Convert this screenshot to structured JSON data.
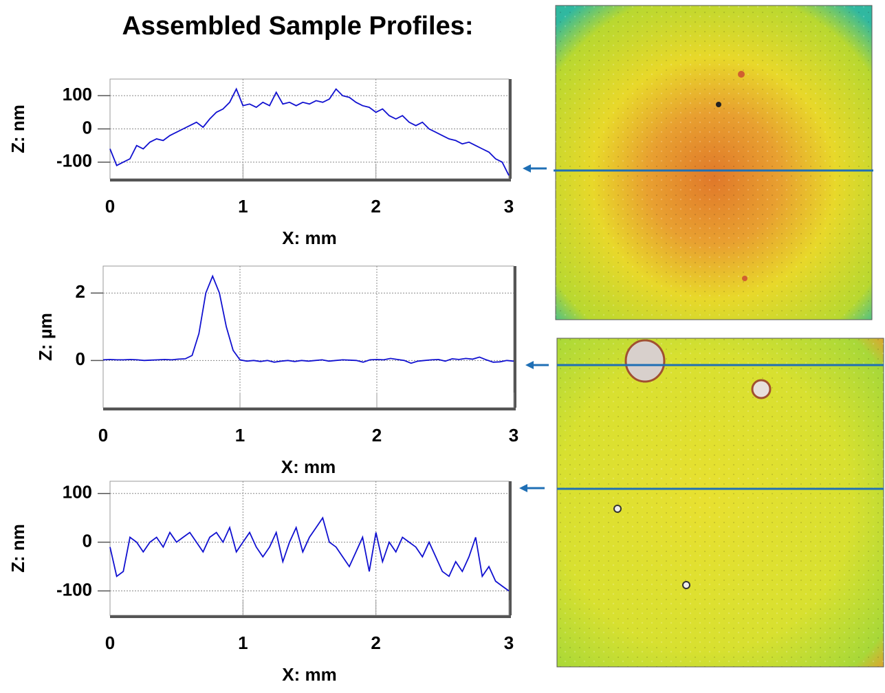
{
  "title": "Assembled Sample Profiles:",
  "chart_data": [
    {
      "type": "line",
      "xlabel": "X:  mm",
      "ylabel": "Z:  nm",
      "xlim": [
        0,
        3
      ],
      "xticks": [
        0,
        1,
        2,
        3
      ],
      "ylim": [
        -150,
        150
      ],
      "yticks": [
        -100,
        0,
        100
      ],
      "grid": true,
      "series": [
        {
          "color": "#1010d0",
          "x": [
            0,
            0.05,
            0.1,
            0.15,
            0.2,
            0.25,
            0.3,
            0.35,
            0.4,
            0.45,
            0.5,
            0.55,
            0.6,
            0.65,
            0.7,
            0.75,
            0.8,
            0.85,
            0.9,
            0.95,
            1,
            1.05,
            1.1,
            1.15,
            1.2,
            1.25,
            1.3,
            1.35,
            1.4,
            1.45,
            1.5,
            1.55,
            1.6,
            1.65,
            1.7,
            1.75,
            1.8,
            1.85,
            1.9,
            1.95,
            2,
            2.05,
            2.1,
            2.15,
            2.2,
            2.25,
            2.3,
            2.35,
            2.4,
            2.45,
            2.5,
            2.55,
            2.6,
            2.65,
            2.7,
            2.75,
            2.8,
            2.85,
            2.9,
            2.95,
            3
          ],
          "values": [
            -60,
            -110,
            -100,
            -90,
            -50,
            -60,
            -40,
            -30,
            -35,
            -20,
            -10,
            0,
            10,
            20,
            5,
            30,
            50,
            60,
            80,
            120,
            70,
            75,
            65,
            80,
            70,
            110,
            75,
            80,
            70,
            80,
            75,
            85,
            80,
            90,
            120,
            100,
            95,
            80,
            70,
            65,
            50,
            60,
            40,
            30,
            40,
            20,
            10,
            20,
            0,
            -10,
            -20,
            -30,
            -35,
            -45,
            -40,
            -50,
            -60,
            -70,
            -90,
            -100,
            -140
          ]
        }
      ]
    },
    {
      "type": "line",
      "xlabel": "X:  mm",
      "ylabel": "Z:  µm",
      "xlim": [
        0,
        3
      ],
      "xticks": [
        0,
        1,
        2,
        3
      ],
      "ylim": [
        -1.4,
        2.8
      ],
      "yticks": [
        0,
        2
      ],
      "grid": true,
      "series": [
        {
          "color": "#1010d0",
          "x": [
            0,
            0.05,
            0.1,
            0.15,
            0.2,
            0.25,
            0.3,
            0.35,
            0.4,
            0.45,
            0.5,
            0.55,
            0.6,
            0.65,
            0.7,
            0.75,
            0.8,
            0.85,
            0.9,
            0.95,
            1,
            1.05,
            1.1,
            1.15,
            1.2,
            1.25,
            1.3,
            1.35,
            1.4,
            1.45,
            1.5,
            1.55,
            1.6,
            1.65,
            1.7,
            1.75,
            1.8,
            1.85,
            1.9,
            1.95,
            2,
            2.05,
            2.1,
            2.15,
            2.2,
            2.25,
            2.3,
            2.35,
            2.4,
            2.45,
            2.5,
            2.55,
            2.6,
            2.65,
            2.7,
            2.75,
            2.8,
            2.85,
            2.9,
            2.95,
            3
          ],
          "values": [
            0.02,
            0.03,
            0.02,
            0.02,
            0.03,
            0.02,
            0,
            0.01,
            0.02,
            0.03,
            0.02,
            0.04,
            0.05,
            0.15,
            0.8,
            2.0,
            2.5,
            2.0,
            1.0,
            0.3,
            0.02,
            -0.02,
            0,
            -0.03,
            0,
            -0.05,
            -0.02,
            0,
            -0.03,
            0,
            -0.02,
            0,
            0.02,
            -0.02,
            0,
            0.02,
            0.01,
            0,
            -0.05,
            0.02,
            0.03,
            0.02,
            0.06,
            0.03,
            0,
            -0.08,
            -0.02,
            0,
            0.02,
            0.03,
            -0.02,
            0.05,
            0.03,
            0.06,
            0.04,
            0.1,
            0.02,
            -0.05,
            -0.04,
            0,
            -0.02
          ]
        }
      ]
    },
    {
      "type": "line",
      "xlabel": "X:  mm",
      "ylabel": "Z:  nm",
      "xlim": [
        0,
        3
      ],
      "xticks": [
        0,
        1,
        2,
        3
      ],
      "ylim": [
        -150,
        125
      ],
      "yticks": [
        -100,
        0,
        100
      ],
      "grid": true,
      "series": [
        {
          "color": "#1010d0",
          "x": [
            0,
            0.05,
            0.1,
            0.15,
            0.2,
            0.25,
            0.3,
            0.35,
            0.4,
            0.45,
            0.5,
            0.55,
            0.6,
            0.65,
            0.7,
            0.75,
            0.8,
            0.85,
            0.9,
            0.95,
            1,
            1.05,
            1.1,
            1.15,
            1.2,
            1.25,
            1.3,
            1.35,
            1.4,
            1.45,
            1.5,
            1.55,
            1.6,
            1.65,
            1.7,
            1.75,
            1.8,
            1.85,
            1.9,
            1.95,
            2,
            2.05,
            2.1,
            2.15,
            2.2,
            2.25,
            2.3,
            2.35,
            2.4,
            2.45,
            2.5,
            2.55,
            2.6,
            2.65,
            2.7,
            2.75,
            2.8,
            2.85,
            2.9,
            2.95,
            3
          ],
          "values": [
            -10,
            -70,
            -60,
            10,
            0,
            -20,
            0,
            10,
            -10,
            20,
            0,
            10,
            20,
            0,
            -20,
            10,
            20,
            0,
            30,
            -20,
            0,
            20,
            -10,
            -30,
            -10,
            20,
            -40,
            0,
            30,
            -20,
            10,
            30,
            50,
            0,
            -10,
            -30,
            -50,
            -20,
            10,
            -60,
            20,
            -40,
            0,
            -20,
            10,
            0,
            -10,
            -30,
            0,
            -30,
            -60,
            -70,
            -40,
            -60,
            -30,
            10,
            -70,
            -50,
            -80,
            -90,
            -100
          ]
        }
      ]
    }
  ]
}
